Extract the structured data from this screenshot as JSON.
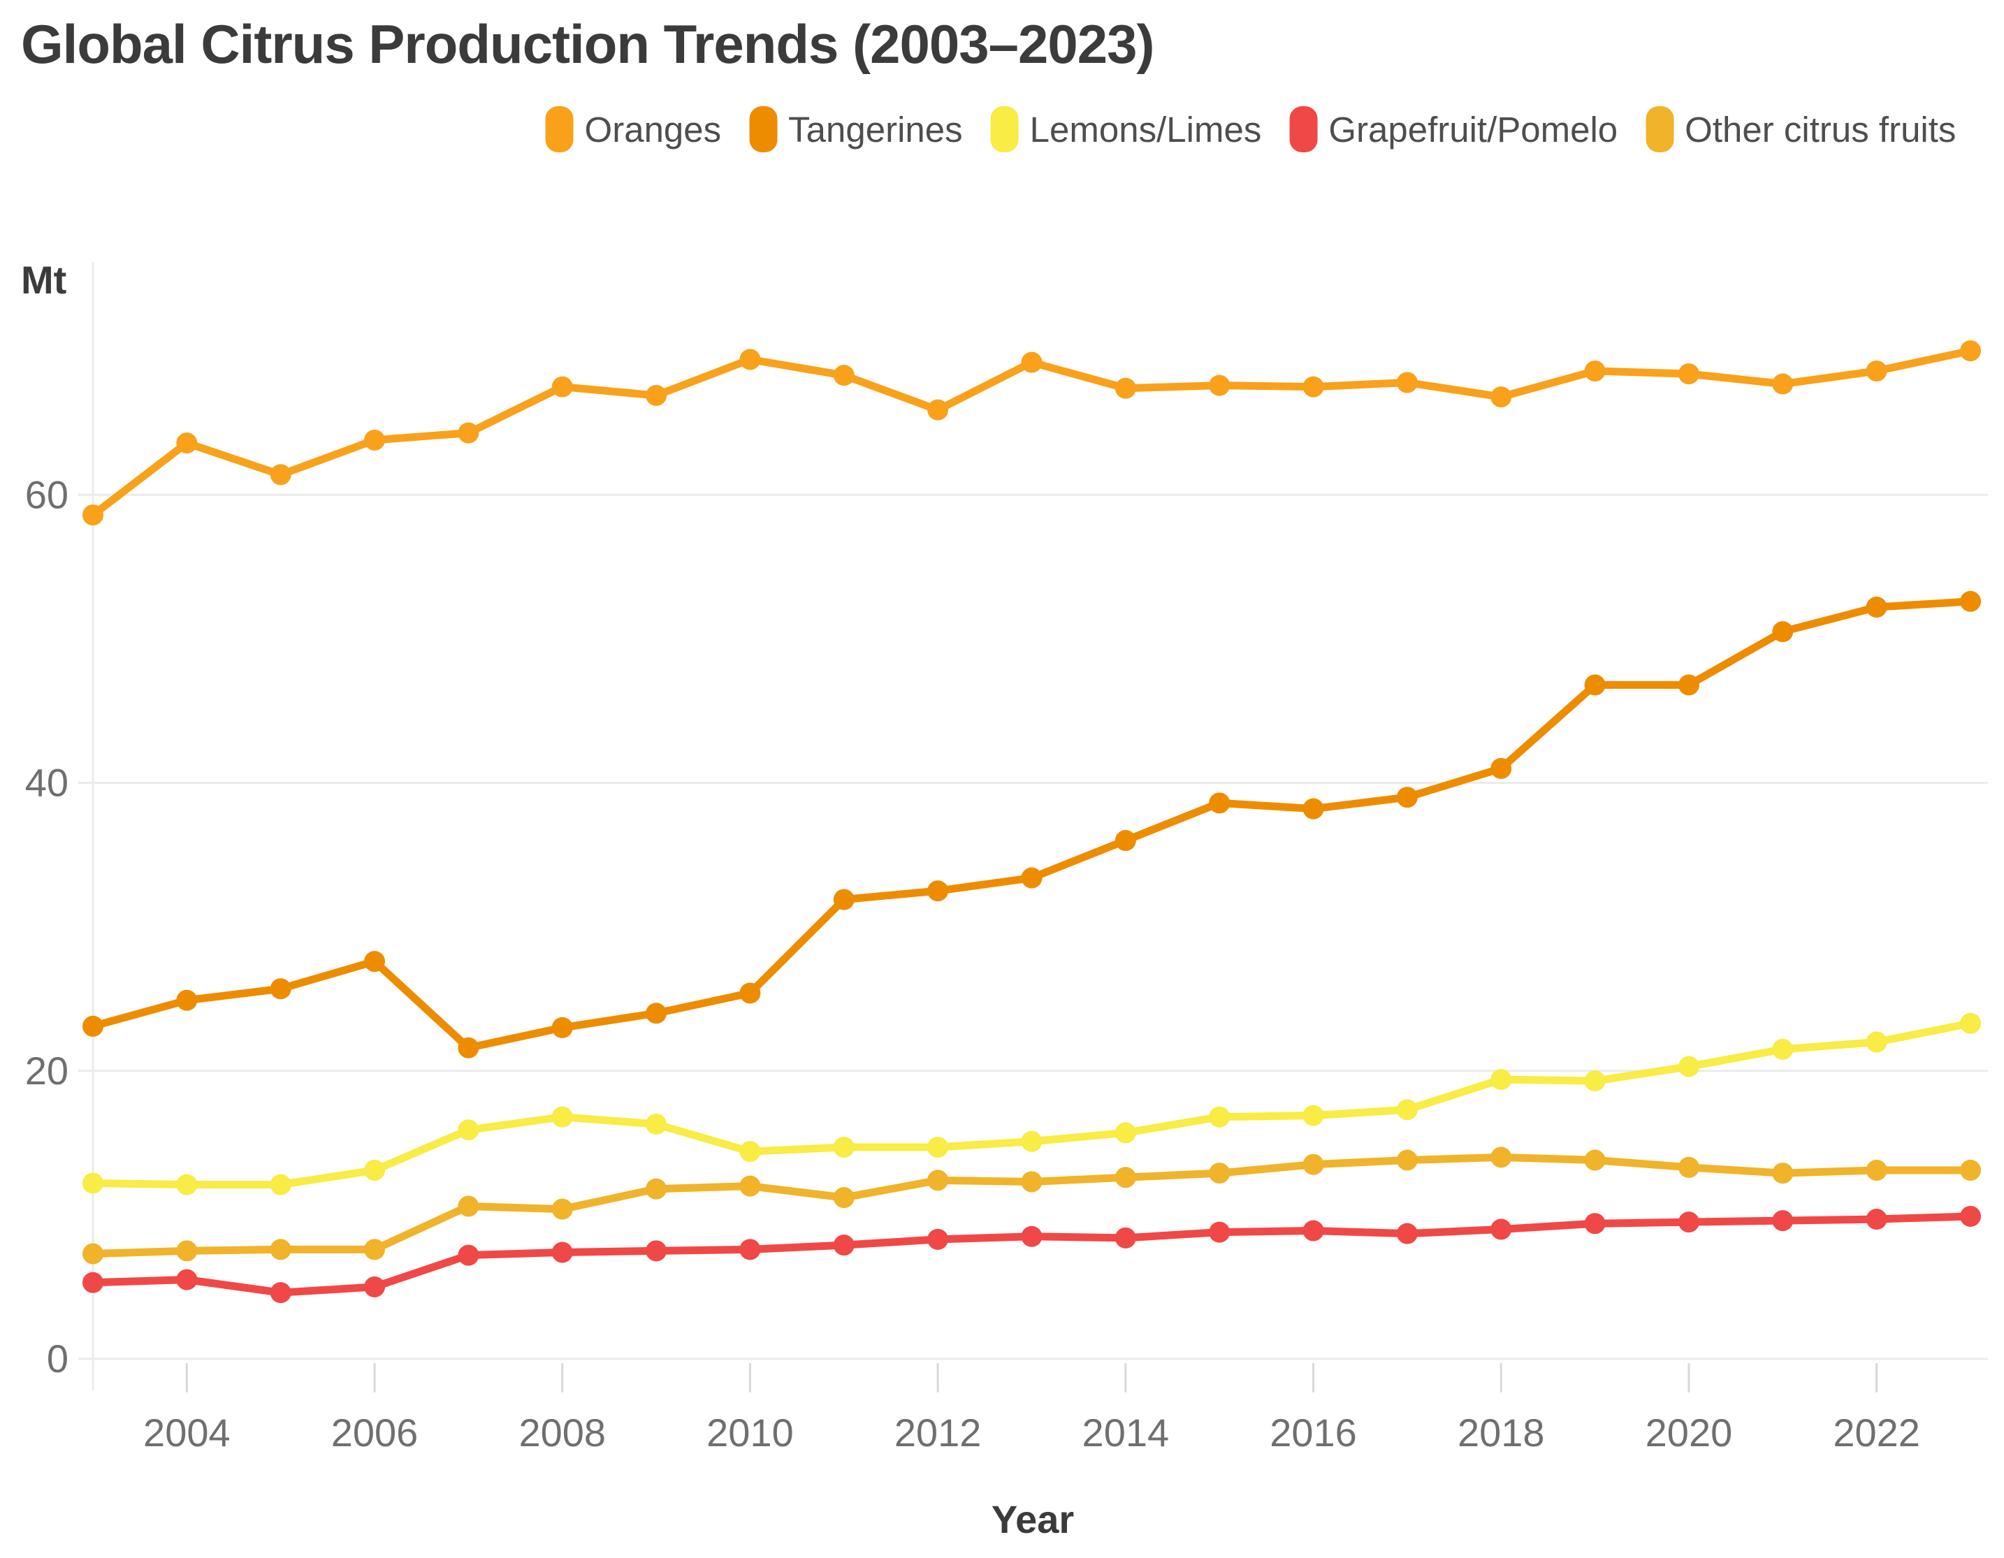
{
  "chart": {
    "title": "Global Citrus Production Trends (2003–2023)",
    "y_unit": "Mt",
    "x_label": "Year"
  },
  "chart_data": {
    "type": "line",
    "title": "Global Citrus Production Trends (2003–2023)",
    "xlabel": "Year",
    "ylabel": "Mt",
    "legend_position": "top",
    "grid": "horizontal",
    "background": "#ffffff",
    "grid_color": "#ebebeb",
    "tick_color": "#d8d8d8",
    "axis_text_color": "#6f6f6f",
    "ylim": [
      0,
      73.5
    ],
    "y_ticks": [
      0,
      20,
      40,
      60
    ],
    "x_tick_labels": [
      2004,
      2006,
      2008,
      2010,
      2012,
      2014,
      2016,
      2018,
      2020,
      2022
    ],
    "x": [
      2003,
      2004,
      2005,
      2006,
      2007,
      2008,
      2009,
      2010,
      2011,
      2012,
      2013,
      2014,
      2015,
      2016,
      2017,
      2018,
      2019,
      2020,
      2021,
      2022,
      2023
    ],
    "series": [
      {
        "name": "Oranges",
        "color": "#F9A11B",
        "values": [
          58.6,
          63.6,
          61.4,
          63.8,
          64.3,
          67.5,
          66.9,
          69.4,
          68.3,
          65.9,
          69.2,
          67.4,
          67.6,
          67.5,
          67.8,
          66.8,
          68.6,
          68.4,
          67.7,
          68.6,
          70.0
        ]
      },
      {
        "name": "Tangerines",
        "color": "#EE8C00",
        "values": [
          23.1,
          24.9,
          25.7,
          27.6,
          21.6,
          23.0,
          24.0,
          25.4,
          31.9,
          32.5,
          33.4,
          36.0,
          38.6,
          38.2,
          39.0,
          41.0,
          46.8,
          46.8,
          50.5,
          52.2,
          52.6
        ]
      },
      {
        "name": "Lemons/Limes",
        "color": "#F8EC45",
        "values": [
          12.2,
          12.1,
          12.1,
          13.1,
          15.9,
          16.8,
          16.3,
          14.4,
          14.7,
          14.7,
          15.1,
          15.7,
          16.8,
          16.9,
          17.3,
          19.4,
          19.3,
          20.3,
          21.5,
          22.0,
          23.3
        ]
      },
      {
        "name": "Grapefruit/Pomelo",
        "color": "#F04846",
        "values": [
          5.3,
          5.5,
          4.6,
          5.0,
          7.2,
          7.4,
          7.5,
          7.6,
          7.9,
          8.3,
          8.5,
          8.4,
          8.8,
          8.9,
          8.7,
          9.0,
          9.4,
          9.5,
          9.6,
          9.7,
          9.9
        ]
      },
      {
        "name": "Other citrus fruits",
        "color": "#F0B32A",
        "values": [
          7.3,
          7.5,
          7.6,
          7.6,
          10.6,
          10.4,
          11.8,
          12.0,
          11.2,
          12.4,
          12.3,
          12.6,
          12.9,
          13.5,
          13.8,
          14.0,
          13.8,
          13.3,
          12.9,
          13.1,
          13.1
        ]
      }
    ]
  }
}
